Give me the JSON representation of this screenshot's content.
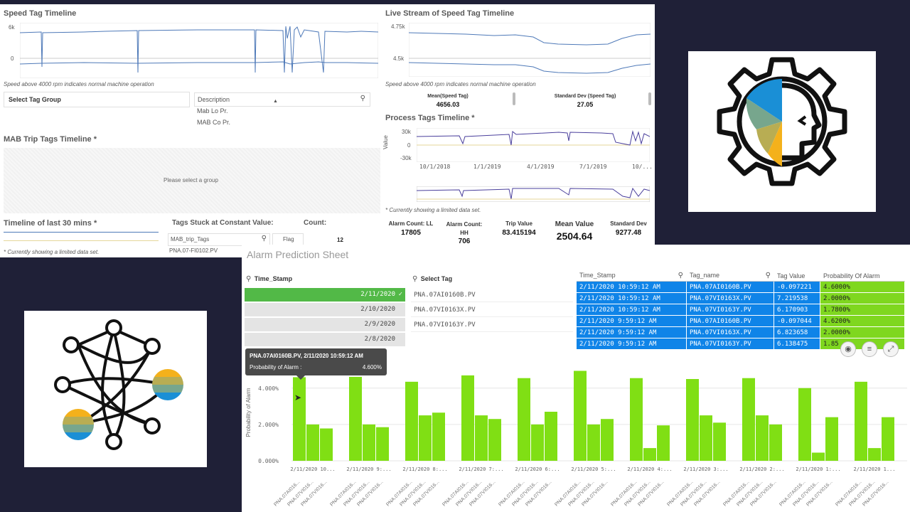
{
  "speed_timeline": {
    "title": "Speed Tag Timeline",
    "y_ticks": [
      "6k",
      "0"
    ],
    "note": "Speed above 4000 rpm indicates normal machine operation"
  },
  "tag_group": {
    "select_label": "Select Tag Group",
    "description_header": "Description",
    "items": [
      "Mab Lo Pr.",
      "MAB Co Pr."
    ]
  },
  "mab_trip": {
    "title": "MAB Trip Tags Timeline *",
    "placeholder": "Please select a group"
  },
  "timeline30": {
    "title": "Timeline of last 30 mins *",
    "note": "* Currently showing a limited data set."
  },
  "stuck": {
    "title": "Tags Stuck at Constant Value:",
    "count_label": "Count:",
    "search_value": "MAB_trip_Tags",
    "flag_label": "Flag",
    "count_value": "12",
    "row": "PNA.07-FI0102.PV"
  },
  "live_stream": {
    "title": "Live Stream of Speed Tag Timeline",
    "y_ticks": [
      "4.75k",
      "4.5k"
    ],
    "note": "Speed above 4000 rpm indicates normal machine operation",
    "mean_label": "Mean(Speed Tag)",
    "mean_value": "4656.03",
    "std_label": "Standard Dev (Speed Tag)",
    "std_value": "27.05"
  },
  "process": {
    "title": "Process Tags Timeline *",
    "y_label": "Value",
    "y_ticks": [
      "30k",
      "0",
      "-30k"
    ],
    "x_ticks": [
      "10/1/2018",
      "1/1/2019",
      "4/1/2019",
      "7/1/2019",
      "10/..."
    ],
    "note": "* Currently showing a limited data set."
  },
  "kpis": [
    {
      "label": "Alarm Count: LL",
      "value": "17805"
    },
    {
      "label": "Alarm Count: HH",
      "value": "706"
    },
    {
      "label": "Trip Value",
      "value": "83.415194"
    },
    {
      "label": "Mean Value",
      "value": "2504.64"
    },
    {
      "label": "Standard Dev",
      "value": "9277.48"
    }
  ],
  "alarm_sheet": {
    "title": "Alarm Prediction Sheet",
    "time_stamp_label": "Time_Stamp",
    "select_tag_label": "Select Tag",
    "timestamps": [
      "2/11/2020",
      "2/10/2020",
      "2/9/2020",
      "2/8/2020"
    ],
    "selected_mark": "✓",
    "tags": [
      "PNA.07AI0160B.PV",
      "PNA.07VI0163X.PV",
      "PNA.07VI0163Y.PV"
    ],
    "table_headers": [
      "Time_Stamp",
      "Tag_name",
      "Tag Value",
      "Probability Of Alarm"
    ],
    "table_rows": [
      [
        "2/11/2020 10:59:12 AM",
        "PNA.07AI0160B.PV",
        "-0.097221",
        "4.6000%"
      ],
      [
        "2/11/2020 10:59:12 AM",
        "PNA.07VI0163X.PV",
        "7.219538",
        "2.0000%"
      ],
      [
        "2/11/2020 10:59:12 AM",
        "PNA.07VI0163Y.PV",
        "6.170903",
        "1.7800%"
      ],
      [
        "2/11/2020 9:59:12 AM",
        "PNA.07AI0160B.PV",
        "-0.097044",
        "4.6200%"
      ],
      [
        "2/11/2020 9:59:12 AM",
        "PNA.07VI0163X.PV",
        "6.823658",
        "2.0000%"
      ],
      [
        "2/11/2020 9:59:12 AM",
        "PNA.07VI0163Y.PV",
        "6.138475",
        "1.85"
      ]
    ],
    "tooltip_title": "PNA.07AI0160B.PV, 2/11/2020 10:59:12 AM",
    "tooltip_label": "Probability of Alarm :",
    "tooltip_value": "4.600%",
    "toolbar_icons": [
      "camera-icon",
      "sliders-icon",
      "expand-icon"
    ]
  },
  "chart_data": {
    "type": "bar",
    "ylabel": "Probability of Alarm",
    "ylim": [
      0,
      5.4
    ],
    "y_ticks": [
      "0.000%",
      "2.000%",
      "4.000%"
    ],
    "categories": [
      "2/11/2020 10...",
      "2/11/2020 9:...",
      "2/11/2020 8:...",
      "2/11/2020 7:...",
      "2/11/2020 6:...",
      "2/11/2020 5:...",
      "2/11/2020 4:...",
      "2/11/2020 3:...",
      "2/11/2020 2:...",
      "2/11/2020 1:...",
      "2/11/2020 1..."
    ],
    "sub_labels": [
      "PNA.07AI016...",
      "PNA.07VI016...",
      "PNA.07VI016..."
    ],
    "values": [
      [
        4.6,
        2.0,
        1.78
      ],
      [
        4.62,
        2.0,
        1.85
      ],
      [
        4.35,
        2.5,
        2.65
      ],
      [
        4.7,
        2.5,
        2.3
      ],
      [
        4.55,
        2.0,
        2.7
      ],
      [
        4.95,
        2.0,
        2.3
      ],
      [
        4.55,
        0.7,
        1.95
      ],
      [
        4.5,
        2.5,
        2.1
      ],
      [
        4.55,
        2.5,
        2.0
      ],
      [
        4.0,
        0.45,
        2.4
      ],
      [
        4.35,
        0.7,
        2.4
      ]
    ],
    "bar_color": "#80df14"
  }
}
